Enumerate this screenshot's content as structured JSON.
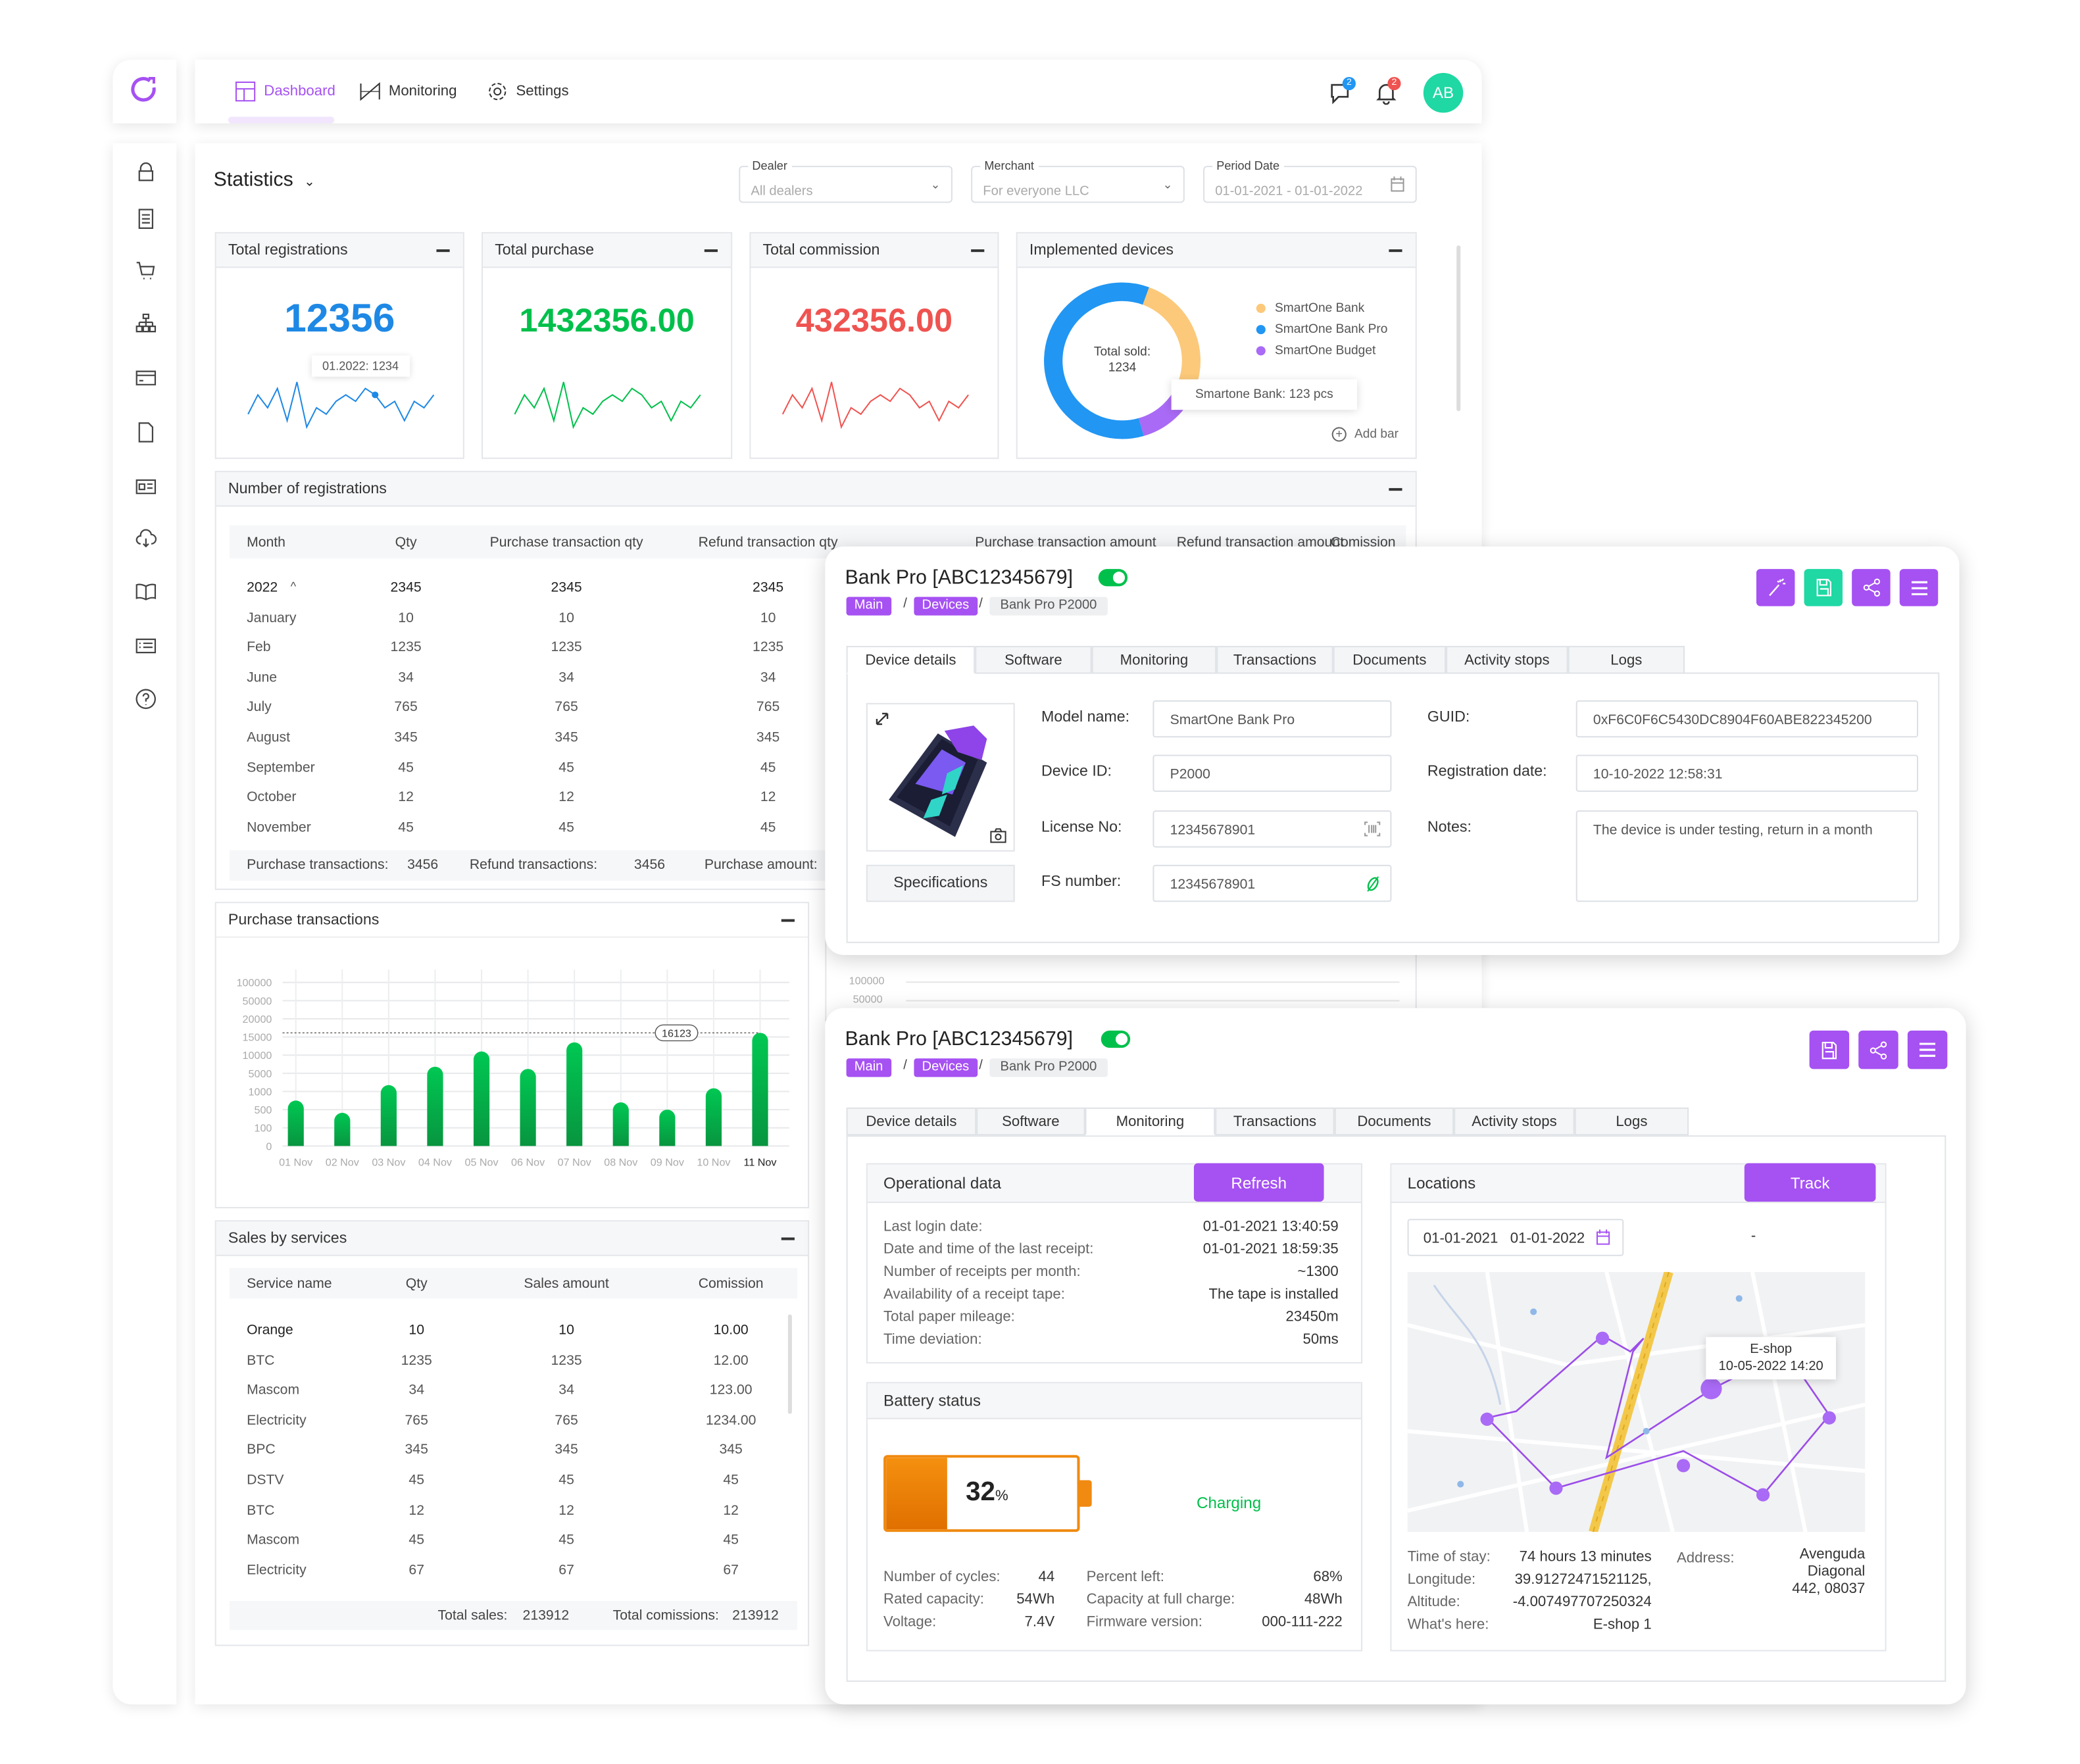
{
  "nav": {
    "items": [
      {
        "label": "Dashboard",
        "icon": "dashboard-icon",
        "active": true
      },
      {
        "label": "Monitoring",
        "icon": "monitoring-icon"
      },
      {
        "label": "Settings",
        "icon": "gear-icon"
      }
    ],
    "chat_badge": "2",
    "bell_badge": "2",
    "avatar": "AB"
  },
  "sidebar": {
    "icons": [
      "lock-icon",
      "document-list-icon",
      "cart-icon",
      "org-chart-icon",
      "credit-card-icon",
      "file-icon",
      "id-card-icon",
      "cloud-download-icon",
      "book-icon",
      "list-icon",
      "help-icon"
    ]
  },
  "statistics": {
    "title": "Statistics",
    "filters": {
      "dealer": {
        "label": "Dealer",
        "value": "All dealers"
      },
      "merchant": {
        "label": "Merchant",
        "value": "For everyone LLC"
      },
      "period": {
        "label": "Period Date",
        "value": "01-01-2021 - 01-01-2022"
      }
    }
  },
  "kpis": [
    {
      "title": "Total registrations",
      "value": "12356",
      "color": "#1e88e5",
      "tooltip": "01.2022: 1234"
    },
    {
      "title": "Total purchase",
      "value": "1432356.00",
      "color": "#00c04b"
    },
    {
      "title": "Total commission",
      "value": "432356.00",
      "color": "#ef5350"
    }
  ],
  "devices": {
    "title": "Implemented devices",
    "center_label": "Total sold:",
    "center_value": "1234",
    "legend": [
      {
        "name": "SmartOne Bank",
        "color": "#fcc97a"
      },
      {
        "name": "SmartOne Bank Pro",
        "color": "#2196f3"
      },
      {
        "name": "SmartOne Budget",
        "color": "#a96af5"
      }
    ],
    "tooltip": "Smartone Bank: 123 pcs",
    "add_bar": "Add bar"
  },
  "registrations": {
    "title": "Number of registrations",
    "columns": [
      "Month",
      "Qty",
      "Purchase transaction qty",
      "Refund transaction qty",
      "Purchase transaction amount",
      "Refund transaction amount",
      "Comission"
    ],
    "rows": [
      [
        "2022",
        "2345",
        "2345",
        "2345"
      ],
      [
        "January",
        "10",
        "10",
        "10"
      ],
      [
        "Feb",
        "1235",
        "1235",
        "1235"
      ],
      [
        "June",
        "34",
        "34",
        "34"
      ],
      [
        "July",
        "765",
        "765",
        "765"
      ],
      [
        "August",
        "345",
        "345",
        "345"
      ],
      [
        "September",
        "45",
        "45",
        "45"
      ],
      [
        "October",
        "12",
        "12",
        "12"
      ],
      [
        "November",
        "45",
        "45",
        "45"
      ]
    ],
    "footer": {
      "purchase_label": "Purchase transactions:",
      "purchase_value": "3456",
      "refund_label": "Refund transactions:",
      "refund_value": "3456",
      "amount_label": "Purchase amount:"
    }
  },
  "purchase_chart_title": "Purchase transactions",
  "ghost_chart_ticks": [
    "100000",
    "50000"
  ],
  "chart_data": [
    {
      "type": "bar",
      "title": "Purchase transactions",
      "categories": [
        "01 Nov",
        "02 Nov",
        "03 Nov",
        "04 Nov",
        "05 Nov",
        "06 Nov",
        "07 Nov",
        "08 Nov",
        "09 Nov",
        "10 Nov",
        "11 Nov"
      ],
      "values": [
        750,
        430,
        2400,
        6800,
        11000,
        6200,
        13500,
        700,
        500,
        1700,
        16123
      ],
      "yticks": [
        0,
        100,
        500,
        1000,
        5000,
        10000,
        15000,
        20000,
        50000,
        100000
      ],
      "ylim": [
        0,
        100000
      ],
      "annotation": "16123",
      "highlight": "11 Nov",
      "grid": true,
      "color": "#00c04b"
    },
    {
      "type": "line",
      "title": "Total registrations",
      "values": [
        3,
        6,
        4,
        7,
        2,
        8,
        1,
        4,
        3,
        5,
        6,
        5,
        7,
        6,
        4,
        5,
        2,
        5,
        4,
        6
      ],
      "color": "#1e88e5"
    },
    {
      "type": "line",
      "title": "Total purchase",
      "values": [
        3,
        6,
        4,
        7,
        2,
        8,
        1,
        4,
        3,
        5,
        6,
        5,
        7,
        6,
        4,
        5,
        2,
        5,
        4,
        6
      ],
      "color": "#00c04b"
    },
    {
      "type": "line",
      "title": "Total commission",
      "values": [
        3,
        6,
        4,
        7,
        2,
        8,
        1,
        4,
        3,
        5,
        6,
        5,
        7,
        6,
        4,
        5,
        2,
        5,
        4,
        6
      ],
      "color": "#ef5350"
    },
    {
      "type": "pie",
      "title": "Implemented devices",
      "categories": [
        "SmartOne Bank",
        "SmartOne Bank Pro",
        "SmartOne Budget"
      ],
      "values": [
        25,
        60,
        15
      ],
      "colors": [
        "#fcc97a",
        "#2196f3",
        "#a96af5"
      ]
    }
  ],
  "sales": {
    "title": "Sales by services",
    "columns": [
      "Service name",
      "Qty",
      "Sales amount",
      "Comission"
    ],
    "rows": [
      [
        "Orange",
        "10",
        "10",
        "10.00"
      ],
      [
        "BTC",
        "1235",
        "1235",
        "12.00"
      ],
      [
        "Mascom",
        "34",
        "34",
        "123.00"
      ],
      [
        "Electricity",
        "765",
        "765",
        "1234.00"
      ],
      [
        "BPC",
        "345",
        "345",
        "345"
      ],
      [
        "DSTV",
        "45",
        "45",
        "45"
      ],
      [
        "BTC",
        "12",
        "12",
        "12"
      ],
      [
        "Mascom",
        "45",
        "45",
        "45"
      ],
      [
        "Electricity",
        "67",
        "67",
        "67"
      ]
    ],
    "footer": {
      "sales_label": "Total sales:",
      "sales_value": "213912",
      "com_label": "Total comissions:",
      "com_value": "213912"
    }
  },
  "device_popup": {
    "title": "Bank Pro [ABC12345679]",
    "enabled": true,
    "breadcrumb": [
      "Main",
      "Devices",
      "Bank Pro P2000"
    ],
    "tabs": [
      "Device details",
      "Software",
      "Monitoring",
      "Transactions",
      "Documents",
      "Activity stops",
      "Logs"
    ],
    "active_tab": "Device details",
    "specifications": "Specifications",
    "fields": {
      "model_label": "Model name:",
      "model": "SmartOne Bank Pro",
      "device_id_label": "Device ID:",
      "device_id": "P2000",
      "license_label": "License No:",
      "license": "12345678901",
      "fs_label": "FS number:",
      "fs": "12345678901",
      "guid_label": "GUID:",
      "guid": "0xF6C0F6C5430DC8904F60ABE822345200",
      "reg_label": "Registration date:",
      "reg": "10-10-2022 12:58:31",
      "notes_label": "Notes:",
      "notes": "The device is under testing, return in a month"
    }
  },
  "monitor_popup": {
    "title": "Bank Pro [ABC12345679]",
    "enabled": true,
    "breadcrumb": [
      "Main",
      "Devices",
      "Bank Pro P2000"
    ],
    "tabs": [
      "Device details",
      "Software",
      "Monitoring",
      "Transactions",
      "Documents",
      "Activity stops",
      "Logs"
    ],
    "active_tab": "Monitoring",
    "operational": {
      "title": "Operational data",
      "refresh": "Refresh",
      "rows": [
        [
          "Last login date:",
          "01-01-2021 13:40:59"
        ],
        [
          "Date and time of the last receipt:",
          "01-01-2021 18:59:35"
        ],
        [
          "Number of receipts per month:",
          "~1300"
        ],
        [
          "Availability of a receipt tape:",
          "The tape is installed"
        ],
        [
          "Total paper mileage:",
          "23450m"
        ],
        [
          "Time deviation:",
          "50ms"
        ]
      ]
    },
    "battery": {
      "title": "Battery status",
      "percent": "32",
      "unit": "%",
      "level": 32,
      "status": "Charging",
      "left_rows": [
        [
          "Number of cycles:",
          "44"
        ],
        [
          "Rated capacity:",
          "54Wh"
        ],
        [
          "Voltage:",
          "7.4V"
        ]
      ],
      "right_rows": [
        [
          "Percent left:",
          "68%"
        ],
        [
          "Capacity at full charge:",
          "48Wh"
        ],
        [
          "Firmware version:",
          "000-111-222"
        ]
      ]
    },
    "locations": {
      "title": "Locations",
      "track": "Track",
      "date_from": "01-01-2021",
      "date_to": "01-01-2022",
      "dash": "-",
      "map_tooltip_title": "E-shop",
      "map_tooltip_date": "10-05-2022 14:20",
      "rows": [
        [
          "Time of stay:",
          "74 hours 13 minutes"
        ],
        [
          "Longitude:",
          "39.91272471521125,"
        ],
        [
          "Altitude:",
          "-4.007497707250324"
        ],
        [
          "What's here:",
          "E-shop 1"
        ]
      ],
      "address_label": "Address:",
      "address_lines": [
        "Avenguda",
        "Diagonal",
        "442, 08037"
      ]
    }
  }
}
